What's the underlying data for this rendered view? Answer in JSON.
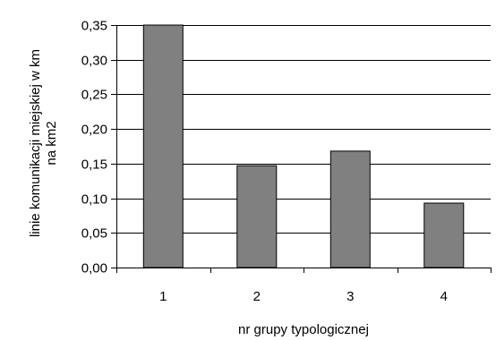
{
  "chart_data": {
    "type": "bar",
    "categories": [
      "1",
      "2",
      "3",
      "4"
    ],
    "values": [
      0.355,
      0.147,
      0.168,
      0.093
    ],
    "ylim": [
      0,
      0.35
    ],
    "yticks": [
      "0,00",
      "0,05",
      "0,10",
      "0,15",
      "0,20",
      "0,25",
      "0,30",
      "0,35"
    ],
    "ytick_values": [
      0,
      0.05,
      0.1,
      0.15,
      0.2,
      0.25,
      0.3,
      0.35
    ],
    "xlabel": "nr grupy typologicznej",
    "ylabel_line1": "linie komunikacji miejskiej w km",
    "ylabel_line2": "na km2",
    "grid": true,
    "bar_color": "#808080",
    "bar_edge_color": "#000000"
  }
}
